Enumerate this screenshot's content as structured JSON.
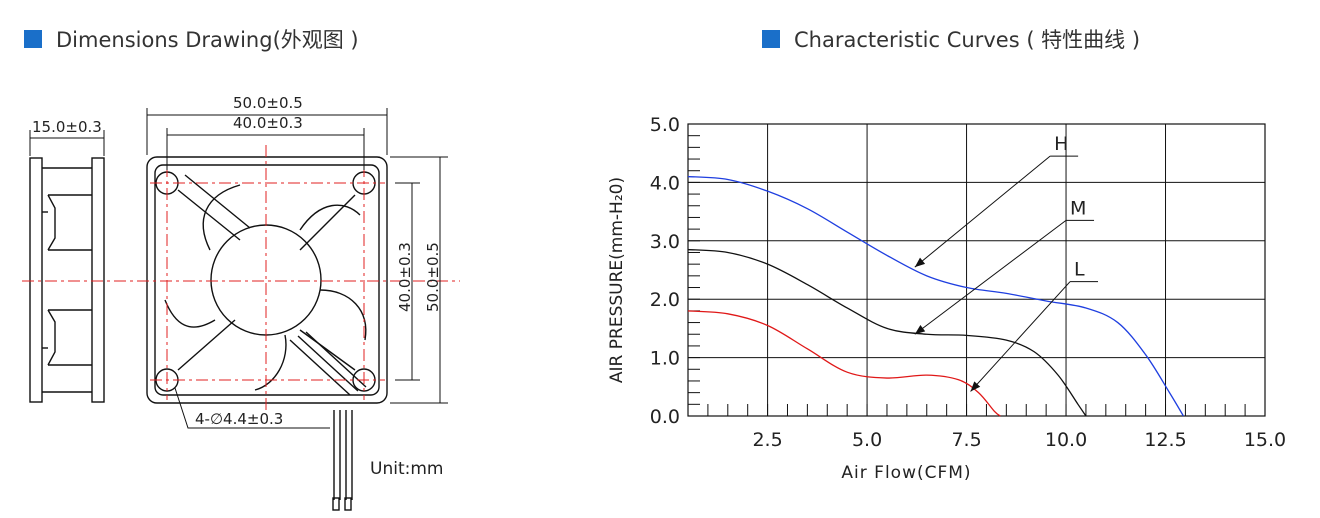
{
  "dimensions_section": {
    "title": "Dimensions Drawing(外观图 )",
    "accent_color": "#1a6fc9",
    "dims": {
      "outer_width": "50.0±0.5",
      "hole_pitch_h": "40.0±0.3",
      "thickness": "15.0±0.3",
      "hole_pitch_v": "40.0±0.3",
      "outer_height": "50.0±0.5",
      "holes": "4-∅4.4±0.3"
    },
    "unit": "Unit:mm"
  },
  "curves_section": {
    "title": "Characteristic Curves ( 特性曲线 )",
    "accent_color": "#1a6fc9"
  },
  "chart_data": {
    "type": "line",
    "xlabel": "Air Flow(CFM)",
    "ylabel": "AIR PRESSURE(mm-H₂0)",
    "xlim": [
      0.5,
      15.0
    ],
    "ylim": [
      0.0,
      5.0
    ],
    "x_ticks": [
      "2.5",
      "5.0",
      "7.5",
      "10.0",
      "12.5",
      "15.0"
    ],
    "y_ticks": [
      "0.0",
      "1.0",
      "2.0",
      "3.0",
      "4.0",
      "5.0"
    ],
    "grid": true,
    "series": [
      {
        "name": "H",
        "color": "#1f3fe0",
        "points": [
          [
            0.5,
            4.1
          ],
          [
            1.5,
            4.05
          ],
          [
            2.5,
            3.85
          ],
          [
            3.5,
            3.55
          ],
          [
            4.5,
            3.15
          ],
          [
            5.5,
            2.75
          ],
          [
            6.5,
            2.4
          ],
          [
            7.5,
            2.2
          ],
          [
            8.5,
            2.1
          ],
          [
            9.5,
            1.97
          ],
          [
            10.5,
            1.85
          ],
          [
            11.3,
            1.6
          ],
          [
            12.0,
            1.05
          ],
          [
            12.6,
            0.4
          ],
          [
            12.95,
            0.0
          ]
        ]
      },
      {
        "name": "M",
        "color": "#111111",
        "points": [
          [
            0.5,
            2.85
          ],
          [
            1.5,
            2.8
          ],
          [
            2.5,
            2.6
          ],
          [
            3.5,
            2.25
          ],
          [
            4.5,
            1.85
          ],
          [
            5.5,
            1.5
          ],
          [
            6.5,
            1.4
          ],
          [
            7.5,
            1.38
          ],
          [
            8.5,
            1.3
          ],
          [
            9.2,
            1.1
          ],
          [
            9.8,
            0.7
          ],
          [
            10.3,
            0.2
          ],
          [
            10.5,
            0.0
          ]
        ]
      },
      {
        "name": "L",
        "color": "#e01818",
        "points": [
          [
            0.5,
            1.8
          ],
          [
            1.5,
            1.75
          ],
          [
            2.5,
            1.55
          ],
          [
            3.5,
            1.15
          ],
          [
            4.5,
            0.75
          ],
          [
            5.5,
            0.65
          ],
          [
            6.5,
            0.7
          ],
          [
            7.3,
            0.62
          ],
          [
            7.8,
            0.4
          ],
          [
            8.2,
            0.08
          ],
          [
            8.35,
            0.0
          ]
        ]
      }
    ]
  }
}
